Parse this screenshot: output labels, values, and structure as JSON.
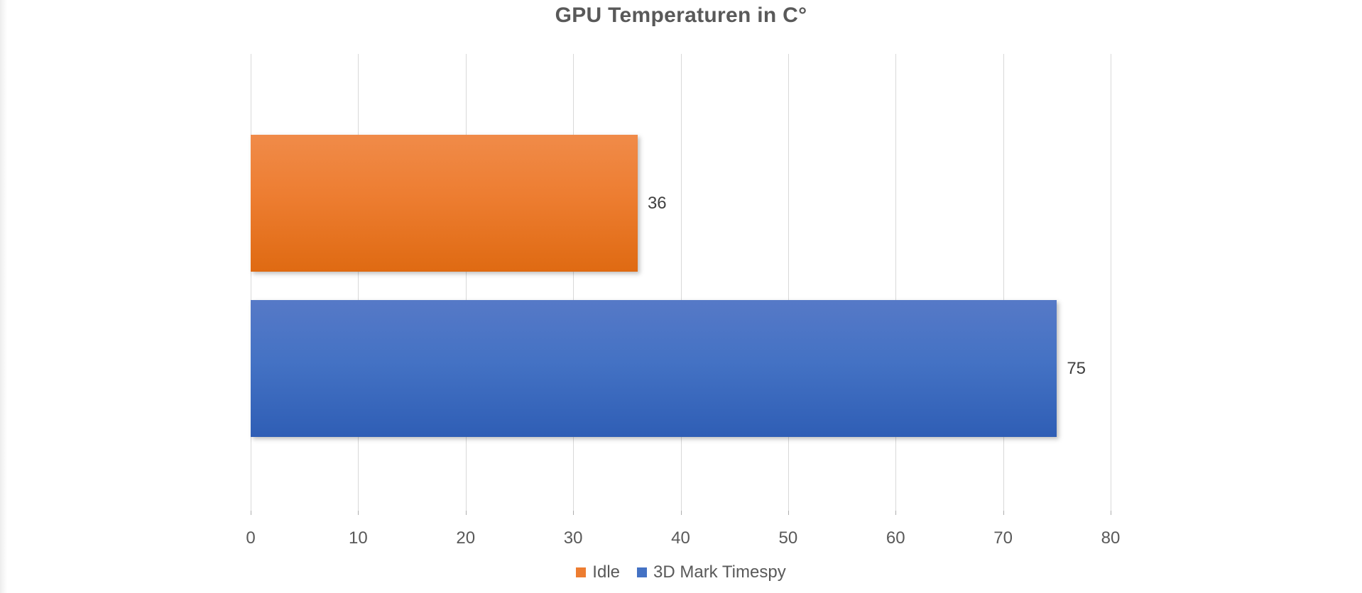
{
  "chart_data": {
    "type": "bar",
    "orientation": "horizontal",
    "title": "GPU Temperaturen in C°",
    "series": [
      {
        "name": "Idle",
        "value": 36,
        "color": "#ED7D31",
        "gradient_top": "#F08B49",
        "gradient_bottom": "#DF6A12"
      },
      {
        "name": "3D Mark Timespy",
        "value": 75,
        "color": "#4472C4",
        "gradient_top": "#5679C7",
        "gradient_bottom": "#2F5EB5"
      }
    ],
    "data_labels": [
      "36",
      "75"
    ],
    "x_axis": {
      "min": 0,
      "max": 80,
      "tick_interval": 10,
      "ticks": [
        "0",
        "10",
        "20",
        "30",
        "40",
        "50",
        "60",
        "70",
        "80"
      ]
    },
    "grid": true,
    "gridline_color": "#D9D9D9",
    "legend": {
      "position": "bottom",
      "entries": [
        "Idle",
        "3D Mark Timespy"
      ]
    },
    "colors": {
      "title_text": "#595959",
      "axis_text": "#595959",
      "data_label_text": "#404040"
    }
  }
}
